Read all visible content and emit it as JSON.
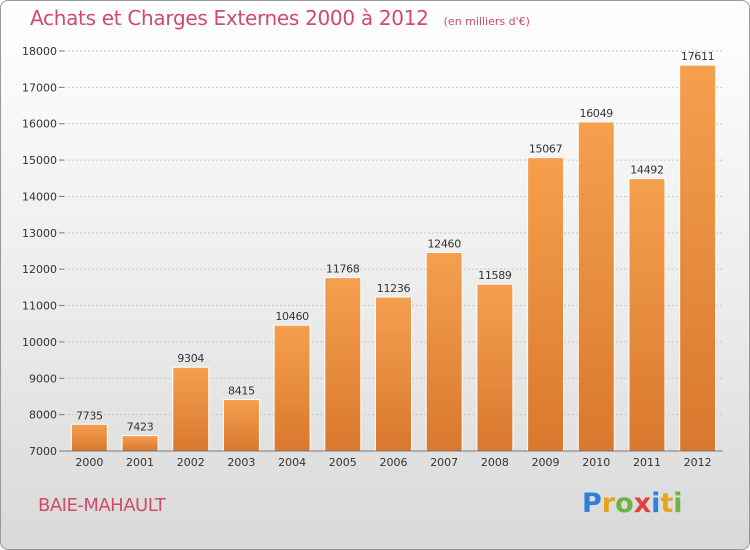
{
  "chart_data": {
    "type": "bar",
    "title": "Achats et Charges Externes 2000 à 2012",
    "subtitle": "(en milliers d'€)",
    "categories": [
      "2000",
      "2001",
      "2002",
      "2003",
      "2004",
      "2005",
      "2006",
      "2007",
      "2008",
      "2009",
      "2010",
      "2011",
      "2012"
    ],
    "values": [
      7735,
      7423,
      9304,
      8415,
      10460,
      11768,
      11236,
      12460,
      11589,
      15067,
      16049,
      14492,
      17611
    ],
    "ylim": [
      7000,
      18000
    ],
    "yticks": [
      7000,
      8000,
      9000,
      10000,
      11000,
      12000,
      13000,
      14000,
      15000,
      16000,
      17000,
      18000
    ],
    "xlabel": "",
    "ylabel": "",
    "grid": true
  },
  "commune": "BAIE-MAHAULT",
  "brand": {
    "letters": [
      "P",
      "r",
      "o",
      "x",
      "i",
      "t",
      "i"
    ],
    "colors": [
      "#2f7fd8",
      "#e8a31d",
      "#6cb33f",
      "#e0413a",
      "#2f7fd8",
      "#e8a31d",
      "#6cb33f"
    ]
  },
  "colors": {
    "bar_top": "#f5a04e",
    "bar_bottom": "#d9782e",
    "accent": "#d14a6b"
  }
}
